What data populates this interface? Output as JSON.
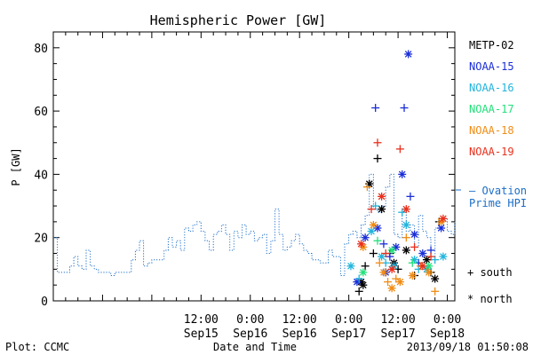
{
  "chart_data": {
    "type": "scatter",
    "title": "Hemispheric Power [GW]",
    "ylabel": "P [GW]",
    "xlabel": "Date and Time",
    "ylim": [
      0,
      85
    ],
    "xlim": [
      "2013-09-14 00:00",
      "2013-09-18 01:50"
    ],
    "y_ticks": [
      0,
      20,
      40,
      60,
      80
    ],
    "x_ticks": [
      {
        "t": "2013-09-15 12:00",
        "top": "12:00",
        "bottom": "Sep15"
      },
      {
        "t": "2013-09-16 00:00",
        "top": "0:00",
        "bottom": "Sep16"
      },
      {
        "t": "2013-09-16 12:00",
        "top": "12:00",
        "bottom": "Sep16"
      },
      {
        "t": "2013-09-17 00:00",
        "top": "0:00",
        "bottom": "Sep17"
      },
      {
        "t": "2013-09-17 12:00",
        "top": "12:00",
        "bottom": "Sep17"
      },
      {
        "t": "2013-09-18 00:00",
        "top": "0:00",
        "bottom": "Sep18"
      }
    ],
    "legend": {
      "placement": "right",
      "satellites": [
        {
          "name": "METP-02",
          "color": "#000000"
        },
        {
          "name": "NOAA-15",
          "color": "#1a2ed8"
        },
        {
          "name": "NOAA-16",
          "color": "#22b4dc"
        },
        {
          "name": "NOAA-17",
          "color": "#22e07a"
        },
        {
          "name": "NOAA-18",
          "color": "#f08c14"
        },
        {
          "name": "NOAA-19",
          "color": "#e8301c"
        }
      ],
      "model": {
        "line1": "— Ovation",
        "line2": "Prime HPI",
        "color": "#1a6ec8"
      },
      "markers": [
        {
          "symbol": "+",
          "label": "south"
        },
        {
          "symbol": "*",
          "label": "north"
        }
      ]
    },
    "ovation_series": {
      "name": "Ovation Prime HPI",
      "x": [
        "2013-09-14 00:00",
        "2013-09-14 01:00",
        "2013-09-14 02:00",
        "2013-09-14 03:00",
        "2013-09-14 04:00",
        "2013-09-14 05:00",
        "2013-09-14 06:00",
        "2013-09-14 07:00",
        "2013-09-14 08:00",
        "2013-09-14 09:00",
        "2013-09-14 10:00",
        "2013-09-14 11:00",
        "2013-09-14 12:00",
        "2013-09-14 13:00",
        "2013-09-14 14:00",
        "2013-09-14 15:00",
        "2013-09-14 16:00",
        "2013-09-14 17:00",
        "2013-09-14 18:00",
        "2013-09-14 19:00",
        "2013-09-14 20:00",
        "2013-09-14 21:00",
        "2013-09-14 22:00",
        "2013-09-14 23:00",
        "2013-09-15 00:00",
        "2013-09-15 01:00",
        "2013-09-15 02:00",
        "2013-09-15 03:00",
        "2013-09-15 04:00",
        "2013-09-15 05:00",
        "2013-09-15 06:00",
        "2013-09-15 07:00",
        "2013-09-15 08:00",
        "2013-09-15 09:00",
        "2013-09-15 10:00",
        "2013-09-15 11:00",
        "2013-09-15 12:00",
        "2013-09-15 13:00",
        "2013-09-15 14:00",
        "2013-09-15 15:00",
        "2013-09-15 16:00",
        "2013-09-15 17:00",
        "2013-09-15 18:00",
        "2013-09-15 19:00",
        "2013-09-15 20:00",
        "2013-09-15 21:00",
        "2013-09-15 22:00",
        "2013-09-15 23:00",
        "2013-09-16 00:00",
        "2013-09-16 01:00",
        "2013-09-16 02:00",
        "2013-09-16 03:00",
        "2013-09-16 04:00",
        "2013-09-16 05:00",
        "2013-09-16 06:00",
        "2013-09-16 07:00",
        "2013-09-16 08:00",
        "2013-09-16 09:00",
        "2013-09-16 10:00",
        "2013-09-16 11:00",
        "2013-09-16 12:00",
        "2013-09-16 13:00",
        "2013-09-16 14:00",
        "2013-09-16 15:00",
        "2013-09-16 16:00",
        "2013-09-16 17:00",
        "2013-09-16 18:00",
        "2013-09-16 19:00",
        "2013-09-16 20:00",
        "2013-09-16 21:00",
        "2013-09-16 22:00",
        "2013-09-16 23:00",
        "2013-09-17 00:00",
        "2013-09-17 01:00",
        "2013-09-17 02:00",
        "2013-09-17 03:00",
        "2013-09-17 04:00",
        "2013-09-17 05:00",
        "2013-09-17 06:00",
        "2013-09-17 07:00",
        "2013-09-17 08:00",
        "2013-09-17 09:00",
        "2013-09-17 10:00",
        "2013-09-17 11:00",
        "2013-09-17 12:00",
        "2013-09-17 13:00",
        "2013-09-17 14:00",
        "2013-09-17 15:00",
        "2013-09-17 16:00",
        "2013-09-17 17:00",
        "2013-09-17 18:00",
        "2013-09-17 19:00",
        "2013-09-17 20:00",
        "2013-09-17 21:00",
        "2013-09-17 22:00",
        "2013-09-17 23:00",
        "2013-09-18 00:00",
        "2013-09-18 01:00",
        "2013-09-18 01:50"
      ],
      "y": [
        20,
        9,
        9,
        9,
        11,
        14,
        11,
        10,
        16,
        11,
        10,
        9,
        9,
        9,
        8,
        9,
        9,
        9,
        9,
        13,
        16,
        19,
        11,
        12,
        13,
        13,
        13,
        16,
        20,
        17,
        19,
        16,
        23,
        22,
        24,
        25,
        22,
        19,
        16,
        21,
        22,
        24,
        21,
        16,
        22,
        20,
        24,
        21,
        22,
        19,
        20,
        21,
        15,
        19,
        29,
        21,
        16,
        17,
        19,
        21,
        18,
        16,
        15,
        13,
        13,
        12,
        12,
        16,
        14,
        14,
        8,
        18,
        21,
        22,
        20,
        24,
        27,
        40,
        29,
        28,
        30,
        36,
        40,
        21,
        20,
        28,
        22,
        24,
        17,
        27,
        22,
        20,
        14,
        23,
        24,
        26,
        22,
        21,
        25
      ]
    },
    "observations": [
      {
        "sat": "METP-02",
        "hemi": "south",
        "x": "2013-09-17 02:30",
        "y": 3
      },
      {
        "sat": "METP-02",
        "hemi": "north",
        "x": "2013-09-17 03:00",
        "y": 6
      },
      {
        "sat": "METP-02",
        "hemi": "north",
        "x": "2013-09-17 03:30",
        "y": 5
      },
      {
        "sat": "METP-02",
        "hemi": "south",
        "x": "2013-09-17 04:00",
        "y": 11
      },
      {
        "sat": "METP-02",
        "hemi": "north",
        "x": "2013-09-17 05:00",
        "y": 37
      },
      {
        "sat": "METP-02",
        "hemi": "south",
        "x": "2013-09-17 06:00",
        "y": 15
      },
      {
        "sat": "METP-02",
        "hemi": "south",
        "x": "2013-09-17 07:00",
        "y": 45
      },
      {
        "sat": "METP-02",
        "hemi": "north",
        "x": "2013-09-17 08:00",
        "y": 29
      },
      {
        "sat": "METP-02",
        "hemi": "south",
        "x": "2013-09-17 10:00",
        "y": 15
      },
      {
        "sat": "METP-02",
        "hemi": "north",
        "x": "2013-09-17 11:00",
        "y": 12
      },
      {
        "sat": "METP-02",
        "hemi": "south",
        "x": "2013-09-17 12:00",
        "y": 10
      },
      {
        "sat": "METP-02",
        "hemi": "north",
        "x": "2013-09-17 14:00",
        "y": 16
      },
      {
        "sat": "METP-02",
        "hemi": "south",
        "x": "2013-09-17 16:00",
        "y": 8
      },
      {
        "sat": "METP-02",
        "hemi": "north",
        "x": "2013-09-17 19:00",
        "y": 13
      },
      {
        "sat": "METP-02",
        "hemi": "south",
        "x": "2013-09-17 20:00",
        "y": 9
      },
      {
        "sat": "METP-02",
        "hemi": "north",
        "x": "2013-09-17 21:00",
        "y": 7
      },
      {
        "sat": "METP-02",
        "hemi": "south",
        "x": "2013-09-17 22:00",
        "y": 25
      },
      {
        "sat": "NOAA-15",
        "hemi": "north",
        "x": "2013-09-17 02:00",
        "y": 6
      },
      {
        "sat": "NOAA-15",
        "hemi": "north",
        "x": "2013-09-17 04:00",
        "y": 20
      },
      {
        "sat": "NOAA-15",
        "hemi": "south",
        "x": "2013-09-17 06:30",
        "y": 61
      },
      {
        "sat": "NOAA-15",
        "hemi": "north",
        "x": "2013-09-17 07:00",
        "y": 23
      },
      {
        "sat": "NOAA-15",
        "hemi": "south",
        "x": "2013-09-17 08:30",
        "y": 18
      },
      {
        "sat": "NOAA-15",
        "hemi": "north",
        "x": "2013-09-17 09:00",
        "y": 9
      },
      {
        "sat": "NOAA-15",
        "hemi": "south",
        "x": "2013-09-17 10:00",
        "y": 14
      },
      {
        "sat": "NOAA-15",
        "hemi": "north",
        "x": "2013-09-17 11:30",
        "y": 17
      },
      {
        "sat": "NOAA-15",
        "hemi": "north",
        "x": "2013-09-17 13:00",
        "y": 40
      },
      {
        "sat": "NOAA-15",
        "hemi": "south",
        "x": "2013-09-17 13:30",
        "y": 61
      },
      {
        "sat": "NOAA-15",
        "hemi": "north",
        "x": "2013-09-17 14:30",
        "y": 78
      },
      {
        "sat": "NOAA-15",
        "hemi": "south",
        "x": "2013-09-17 15:00",
        "y": 33
      },
      {
        "sat": "NOAA-15",
        "hemi": "north",
        "x": "2013-09-17 16:00",
        "y": 21
      },
      {
        "sat": "NOAA-15",
        "hemi": "south",
        "x": "2013-09-17 17:00",
        "y": 12
      },
      {
        "sat": "NOAA-15",
        "hemi": "north",
        "x": "2013-09-17 18:00",
        "y": 15
      },
      {
        "sat": "NOAA-15",
        "hemi": "south",
        "x": "2013-09-17 20:00",
        "y": 16
      },
      {
        "sat": "NOAA-15",
        "hemi": "north",
        "x": "2013-09-17 22:30",
        "y": 23
      },
      {
        "sat": "NOAA-16",
        "hemi": "north",
        "x": "2013-09-17 00:30",
        "y": 11
      },
      {
        "sat": "NOAA-16",
        "hemi": "south",
        "x": "2013-09-17 02:30",
        "y": 7
      },
      {
        "sat": "NOAA-16",
        "hemi": "north",
        "x": "2013-09-17 05:30",
        "y": 22
      },
      {
        "sat": "NOAA-16",
        "hemi": "south",
        "x": "2013-09-17 06:30",
        "y": 30
      },
      {
        "sat": "NOAA-16",
        "hemi": "north",
        "x": "2013-09-17 08:00",
        "y": 14
      },
      {
        "sat": "NOAA-16",
        "hemi": "south",
        "x": "2013-09-17 09:00",
        "y": 12
      },
      {
        "sat": "NOAA-16",
        "hemi": "north",
        "x": "2013-09-17 11:00",
        "y": 11
      },
      {
        "sat": "NOAA-16",
        "hemi": "south",
        "x": "2013-09-17 13:00",
        "y": 28
      },
      {
        "sat": "NOAA-16",
        "hemi": "north",
        "x": "2013-09-17 14:00",
        "y": 24
      },
      {
        "sat": "NOAA-16",
        "hemi": "north",
        "x": "2013-09-17 16:00",
        "y": 13
      },
      {
        "sat": "NOAA-16",
        "hemi": "south",
        "x": "2013-09-17 17:00",
        "y": 10
      },
      {
        "sat": "NOAA-16",
        "hemi": "north",
        "x": "2013-09-17 19:00",
        "y": 10
      },
      {
        "sat": "NOAA-16",
        "hemi": "south",
        "x": "2013-09-17 21:00",
        "y": 13
      },
      {
        "sat": "NOAA-16",
        "hemi": "north",
        "x": "2013-09-17 23:00",
        "y": 14
      },
      {
        "sat": "NOAA-17",
        "hemi": "north",
        "x": "2013-09-17 03:30",
        "y": 9
      },
      {
        "sat": "NOAA-17",
        "hemi": "south",
        "x": "2013-09-17 07:00",
        "y": 19
      },
      {
        "sat": "NOAA-17",
        "hemi": "north",
        "x": "2013-09-17 10:30",
        "y": 16
      },
      {
        "sat": "NOAA-17",
        "hemi": "south",
        "x": "2013-09-17 15:30",
        "y": 12
      },
      {
        "sat": "NOAA-17",
        "hemi": "north",
        "x": "2013-09-17 19:30",
        "y": 11
      },
      {
        "sat": "NOAA-18",
        "hemi": "north",
        "x": "2013-09-17 03:30",
        "y": 17
      },
      {
        "sat": "NOAA-18",
        "hemi": "south",
        "x": "2013-09-17 04:30",
        "y": 36
      },
      {
        "sat": "NOAA-18",
        "hemi": "north",
        "x": "2013-09-17 06:00",
        "y": 24
      },
      {
        "sat": "NOAA-18",
        "hemi": "south",
        "x": "2013-09-17 07:30",
        "y": 12
      },
      {
        "sat": "NOAA-18",
        "hemi": "north",
        "x": "2013-09-17 08:30",
        "y": 9
      },
      {
        "sat": "NOAA-18",
        "hemi": "south",
        "x": "2013-09-17 09:30",
        "y": 6
      },
      {
        "sat": "NOAA-18",
        "hemi": "north",
        "x": "2013-09-17 10:30",
        "y": 4
      },
      {
        "sat": "NOAA-18",
        "hemi": "south",
        "x": "2013-09-17 11:30",
        "y": 7
      },
      {
        "sat": "NOAA-18",
        "hemi": "north",
        "x": "2013-09-17 12:30",
        "y": 6
      },
      {
        "sat": "NOAA-18",
        "hemi": "south",
        "x": "2013-09-17 14:00",
        "y": 20
      },
      {
        "sat": "NOAA-18",
        "hemi": "north",
        "x": "2013-09-17 15:30",
        "y": 8
      },
      {
        "sat": "NOAA-18",
        "hemi": "south",
        "x": "2013-09-17 17:30",
        "y": 11
      },
      {
        "sat": "NOAA-18",
        "hemi": "north",
        "x": "2013-09-17 19:30",
        "y": 9
      },
      {
        "sat": "NOAA-18",
        "hemi": "south",
        "x": "2013-09-17 21:00",
        "y": 3
      },
      {
        "sat": "NOAA-18",
        "hemi": "north",
        "x": "2013-09-17 22:30",
        "y": 25
      },
      {
        "sat": "NOAA-19",
        "hemi": "north",
        "x": "2013-09-17 03:00",
        "y": 18
      },
      {
        "sat": "NOAA-19",
        "hemi": "south",
        "x": "2013-09-17 05:30",
        "y": 29
      },
      {
        "sat": "NOAA-19",
        "hemi": "south",
        "x": "2013-09-17 07:00",
        "y": 50
      },
      {
        "sat": "NOAA-19",
        "hemi": "north",
        "x": "2013-09-17 08:00",
        "y": 33
      },
      {
        "sat": "NOAA-19",
        "hemi": "south",
        "x": "2013-09-17 09:00",
        "y": 15
      },
      {
        "sat": "NOAA-19",
        "hemi": "north",
        "x": "2013-09-17 10:30",
        "y": 10
      },
      {
        "sat": "NOAA-19",
        "hemi": "south",
        "x": "2013-09-17 12:30",
        "y": 48
      },
      {
        "sat": "NOAA-19",
        "hemi": "north",
        "x": "2013-09-17 14:00",
        "y": 29
      },
      {
        "sat": "NOAA-19",
        "hemi": "south",
        "x": "2013-09-17 16:00",
        "y": 17
      },
      {
        "sat": "NOAA-19",
        "hemi": "north",
        "x": "2013-09-17 18:00",
        "y": 11
      },
      {
        "sat": "NOAA-19",
        "hemi": "south",
        "x": "2013-09-17 20:00",
        "y": 14
      },
      {
        "sat": "NOAA-19",
        "hemi": "north",
        "x": "2013-09-17 23:00",
        "y": 26
      }
    ]
  },
  "footer": {
    "plot_credit": "Plot: CCMC",
    "timestamp": "2013/09/18 01:50:08"
  }
}
